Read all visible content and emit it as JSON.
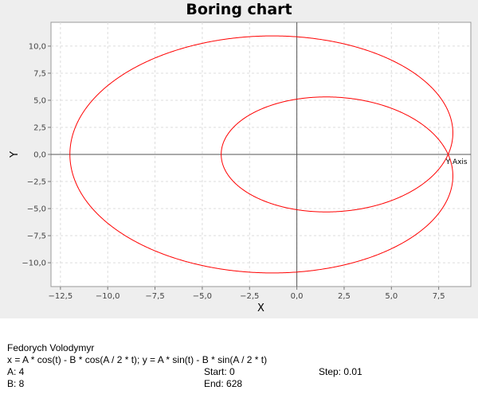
{
  "chart_data": {
    "type": "line",
    "title": "Boring chart",
    "xlabel": "X",
    "ylabel": "Y",
    "xlim": [
      -13.0,
      9.2
    ],
    "ylim": [
      -12.2,
      12.2
    ],
    "xticks": [
      -12.5,
      -10.0,
      -7.5,
      -5.0,
      -2.5,
      0.0,
      2.5,
      5.0,
      7.5
    ],
    "yticks": [
      -10.0,
      -7.5,
      -5.0,
      -2.5,
      0.0,
      2.5,
      5.0,
      7.5,
      10.0
    ],
    "xtick_labels": [
      "−12,5",
      "−10,0",
      "−7,5",
      "−5,0",
      "−2,5",
      "0,0",
      "2,5",
      "5,0",
      "7,5"
    ],
    "ytick_labels": [
      "−10,0",
      "−7,5",
      "−5,0",
      "−2,5",
      "0,0",
      "2,5",
      "5,0",
      "7,5",
      "10,0"
    ],
    "axis_annotation": "Y Axis",
    "grid": true,
    "series_color": "#ff0000",
    "formula": {
      "A": 4,
      "B": 8,
      "t_start": 0,
      "t_end": 628,
      "step": 0.01
    }
  },
  "info": {
    "author": "Fedorych Volodymyr",
    "formula": "x = A * cos(t) - B * cos(A / 2 * t); y = A * sin(t) - B * sin(A / 2 * t)",
    "a_label": "A: 4",
    "b_label": "B: 8",
    "start_label": "Start: 0",
    "end_label": "End: 628",
    "step_label": "Step: 0.01"
  }
}
